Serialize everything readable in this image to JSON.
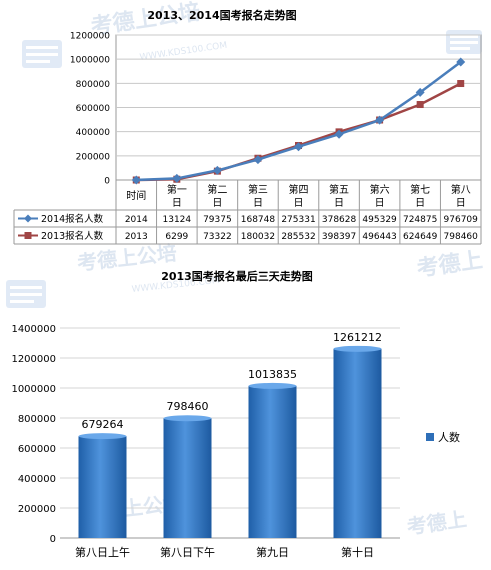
{
  "watermark": {
    "brand": "考德上公培",
    "url": "WWW.KDS100.COM",
    "short": "考德上"
  },
  "chart_data": [
    {
      "type": "line",
      "title": "2013、2014国考报名走势图",
      "categories": [
        "时间",
        "第一日",
        "第二日",
        "第三日",
        "第四日",
        "第五日",
        "第六日",
        "第七日",
        "第八日"
      ],
      "category_lines": [
        [
          "时间"
        ],
        [
          "第一",
          "日"
        ],
        [
          "第二",
          "日"
        ],
        [
          "第三",
          "日"
        ],
        [
          "第四",
          "日"
        ],
        [
          "第五",
          "日"
        ],
        [
          "第六",
          "日"
        ],
        [
          "第七",
          "日"
        ],
        [
          "第八",
          "日"
        ]
      ],
      "series": [
        {
          "name": "2014报名人数",
          "color": "#4a7ebb",
          "marker": "diamond",
          "values": [
            2014,
            13124,
            79375,
            168748,
            275331,
            378628,
            495329,
            724875,
            976709
          ]
        },
        {
          "name": "2013报名人数",
          "color": "#a04545",
          "marker": "square",
          "values": [
            2013,
            6299,
            73322,
            180032,
            285532,
            398397,
            496443,
            624649,
            798460
          ]
        }
      ],
      "ylim": [
        0,
        1200000
      ],
      "yticks": [
        0,
        200000,
        400000,
        600000,
        800000,
        1000000,
        1200000
      ],
      "ytick_labels": [
        "0",
        "200000",
        "400000",
        "600000",
        "800000",
        "1000000",
        "1200000"
      ],
      "grid": true,
      "legend": "data-table"
    },
    {
      "type": "bar",
      "title": "2013国考报名最后三天走势图",
      "categories": [
        "第八日上午",
        "第八日下午",
        "第九日",
        "第十日"
      ],
      "series": [
        {
          "name": "人数",
          "color": "#2e6fb8",
          "values": [
            679264,
            798460,
            1013835,
            1261212
          ]
        }
      ],
      "ylim": [
        0,
        1400000
      ],
      "yticks": [
        0,
        200000,
        400000,
        600000,
        800000,
        1000000,
        1200000,
        1400000
      ],
      "ytick_labels": [
        "0",
        "200000",
        "400000",
        "600000",
        "800000",
        "1000000",
        "1200000",
        "1400000"
      ],
      "grid": true,
      "legend": "right"
    }
  ]
}
